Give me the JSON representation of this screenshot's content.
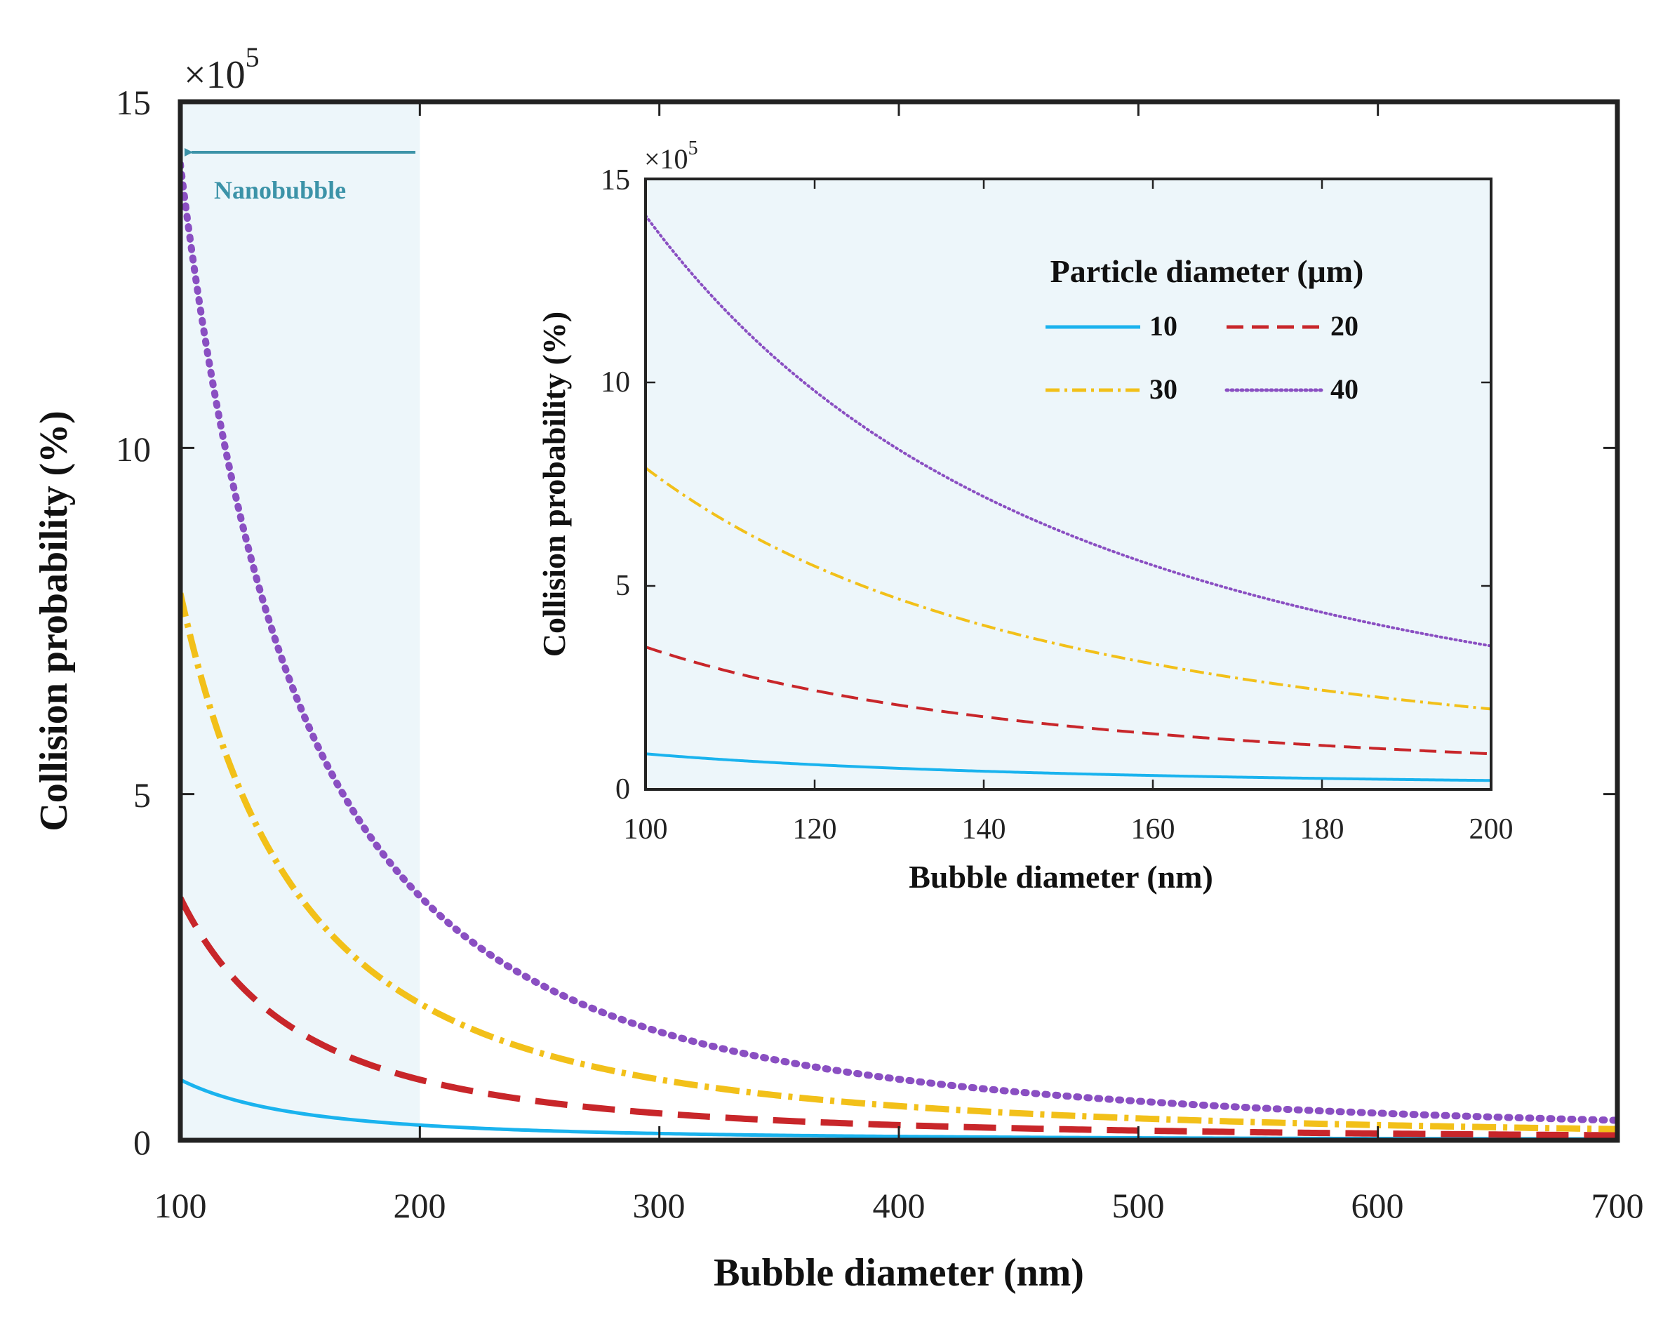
{
  "chart_data": [
    {
      "id": "main",
      "type": "line",
      "xlabel": "Bubble diameter (nm)",
      "ylabel": "Collision probability (%)",
      "x_ticks": [
        "100",
        "200",
        "300",
        "400",
        "500",
        "600",
        "700"
      ],
      "y_ticks": [
        "0",
        "5",
        "10",
        "15"
      ],
      "exponent_prefix": "×10",
      "exponent_power": "5",
      "xlim": [
        100,
        700
      ],
      "ylim": [
        0,
        15
      ],
      "scale": 100000,
      "highlight_region": {
        "x_from": 100,
        "x_to": 200,
        "label": "Nanobubble"
      },
      "series": [
        {
          "name": "10",
          "style": "solid",
          "color": "#1AB3EE",
          "value_at_100": 0.875
        },
        {
          "name": "20",
          "style": "dashed",
          "color": "#C8262A",
          "value_at_100": 3.5
        },
        {
          "name": "30",
          "style": "dashdot",
          "color": "#F2C019",
          "value_at_100": 7.9
        },
        {
          "name": "40",
          "style": "dotted",
          "color": "#8A4FC2",
          "value_at_100": 14.1
        }
      ],
      "curve_model": "y(x) = value_at_100 × (100/x)^2"
    },
    {
      "id": "inset",
      "type": "line",
      "xlabel": "Bubble diameter (nm)",
      "ylabel": "Collision probability (%)",
      "x_ticks": [
        "100",
        "120",
        "140",
        "160",
        "180",
        "200"
      ],
      "y_ticks": [
        "0",
        "5",
        "10",
        "15"
      ],
      "exponent_prefix": "×10",
      "exponent_power": "5",
      "xlim": [
        100,
        200
      ],
      "ylim": [
        0,
        15
      ],
      "scale": 100000,
      "legend_title": "Particle diameter (μm)",
      "legend_position": "top-right"
    }
  ]
}
